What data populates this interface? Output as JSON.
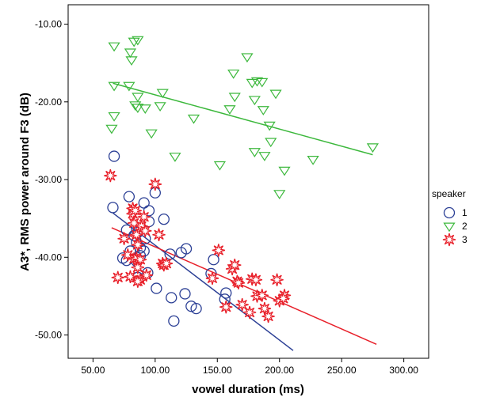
{
  "chart_data": {
    "type": "scatter",
    "title": "",
    "xlabel": "vowel duration (ms)",
    "ylabel": "A3*, RMS power around F3 (dB)",
    "xlim": [
      30,
      320
    ],
    "ylim": [
      -53,
      -7.5
    ],
    "xticks": [
      "50.00",
      "100.00",
      "150.00",
      "200.00",
      "250.00",
      "300.00"
    ],
    "xtick_values": [
      50,
      100,
      150,
      200,
      250,
      300
    ],
    "yticks": [
      "-10.00",
      "-20.00",
      "-30.00",
      "-40.00",
      "-50.00"
    ],
    "ytick_values": [
      -10,
      -20,
      -30,
      -40,
      -50
    ],
    "grid": false,
    "legend_title": "speaker",
    "legend_position": "right",
    "series": [
      {
        "name": "1",
        "marker": "circle",
        "color": "#2b3f95",
        "fit_color": "#2b3f95",
        "fit_line": {
          "x": [
            66,
            211
          ],
          "y": [
            -34.3,
            -52
          ]
        },
        "points": [
          [
            67,
            -27.0
          ],
          [
            66,
            -33.6
          ],
          [
            79,
            -32.2
          ],
          [
            77,
            -36.5
          ],
          [
            83,
            -37.2
          ],
          [
            85,
            -38.1
          ],
          [
            80,
            -39.2
          ],
          [
            74,
            -40.1
          ],
          [
            77,
            -40.4
          ],
          [
            85,
            -40.5
          ],
          [
            88,
            -39.8
          ],
          [
            88,
            -38.8
          ],
          [
            91,
            -39.2
          ],
          [
            86,
            -36.8
          ],
          [
            92,
            -37.6
          ],
          [
            91,
            -33.0
          ],
          [
            95,
            -34.0
          ],
          [
            95,
            -35.4
          ],
          [
            100,
            -31.7
          ],
          [
            107,
            -35.1
          ],
          [
            94,
            -42.0
          ],
          [
            101,
            -44.0
          ],
          [
            112,
            -39.6
          ],
          [
            121,
            -39.4
          ],
          [
            125,
            -38.9
          ],
          [
            113,
            -45.2
          ],
          [
            115,
            -48.2
          ],
          [
            124,
            -44.7
          ],
          [
            129,
            -46.3
          ],
          [
            133,
            -46.6
          ],
          [
            145,
            -42.1
          ],
          [
            147,
            -40.3
          ],
          [
            157,
            -44.6
          ],
          [
            156,
            -45.4
          ],
          [
            86,
            -42.6
          ]
        ]
      },
      {
        "name": "2",
        "marker": "triangle-down",
        "color": "#3cb83c",
        "fit_color": "#3cb83c",
        "fit_line": {
          "x": [
            66,
            275
          ],
          "y": [
            -17.6,
            -26.8
          ]
        },
        "points": [
          [
            67,
            -12.8
          ],
          [
            67,
            -17.9
          ],
          [
            67,
            -21.8
          ],
          [
            65,
            -23.4
          ],
          [
            80,
            -13.6
          ],
          [
            81,
            -14.6
          ],
          [
            83,
            -12.2
          ],
          [
            86,
            -12.0
          ],
          [
            79,
            -17.9
          ],
          [
            84,
            -20.4
          ],
          [
            86,
            -19.3
          ],
          [
            86,
            -20.7
          ],
          [
            92,
            -20.8
          ],
          [
            97,
            -24.0
          ],
          [
            104,
            -20.5
          ],
          [
            106,
            -18.8
          ],
          [
            116,
            -27.0
          ],
          [
            131,
            -22.1
          ],
          [
            152,
            -28.1
          ],
          [
            160,
            -20.9
          ],
          [
            163,
            -16.3
          ],
          [
            164,
            -19.3
          ],
          [
            174,
            -14.2
          ],
          [
            178,
            -17.5
          ],
          [
            182,
            -17.3
          ],
          [
            186,
            -17.4
          ],
          [
            180,
            -19.7
          ],
          [
            187,
            -21.0
          ],
          [
            180,
            -26.4
          ],
          [
            188,
            -26.9
          ],
          [
            192,
            -23.0
          ],
          [
            193,
            -25.1
          ],
          [
            197,
            -18.9
          ],
          [
            200,
            -31.8
          ],
          [
            204,
            -28.8
          ],
          [
            227,
            -27.4
          ],
          [
            275,
            -25.8
          ]
        ]
      },
      {
        "name": "3",
        "marker": "star",
        "color": "#e8202a",
        "fit_color": "#e8202a",
        "fit_line": {
          "x": [
            65,
            278
          ],
          "y": [
            -36.2,
            -51.2
          ]
        },
        "points": [
          [
            64,
            -29.5
          ],
          [
            70,
            -42.6
          ],
          [
            75,
            -37.6
          ],
          [
            78,
            -39.7
          ],
          [
            80,
            -42.5
          ],
          [
            82,
            -33.7
          ],
          [
            82,
            -34.4
          ],
          [
            83,
            -35.6
          ],
          [
            84,
            -34.0
          ],
          [
            85,
            -37.1
          ],
          [
            86,
            -38.4
          ],
          [
            83,
            -40.2
          ],
          [
            85,
            -40.1
          ],
          [
            88,
            -40.3
          ],
          [
            86,
            -41.3
          ],
          [
            88,
            -42.9
          ],
          [
            86,
            -43.1
          ],
          [
            89,
            -36.0
          ],
          [
            91,
            -34.8
          ],
          [
            92,
            -36.6
          ],
          [
            93,
            -42.3
          ],
          [
            100,
            -30.6
          ],
          [
            103,
            -37.1
          ],
          [
            106,
            -40.8
          ],
          [
            107,
            -41.0
          ],
          [
            109,
            -40.8
          ],
          [
            146,
            -42.7
          ],
          [
            151,
            -39.1
          ],
          [
            157,
            -46.4
          ],
          [
            162,
            -41.5
          ],
          [
            164,
            -41.0
          ],
          [
            166,
            -43.1
          ],
          [
            167,
            -43.3
          ],
          [
            170,
            -46.1
          ],
          [
            176,
            -47.1
          ],
          [
            178,
            -42.8
          ],
          [
            181,
            -42.9
          ],
          [
            182,
            -45.0
          ],
          [
            186,
            -44.9
          ],
          [
            188,
            -46.6
          ],
          [
            191,
            -47.6
          ],
          [
            198,
            -42.9
          ],
          [
            200,
            -45.6
          ],
          [
            204,
            -44.9
          ],
          [
            203,
            -45.3
          ]
        ]
      }
    ]
  }
}
